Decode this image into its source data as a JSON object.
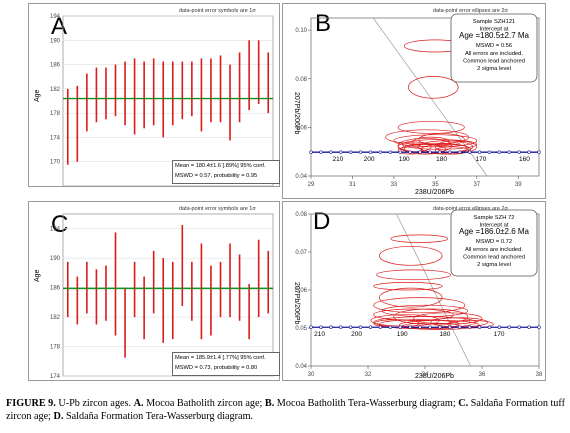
{
  "panels": {
    "A": {
      "letter": "A",
      "top_note": "data-point error symbols are 1σ",
      "ylabel": "Age",
      "ylim": [
        166,
        194
      ],
      "yticks": [
        "170",
        "174",
        "178",
        "182",
        "186",
        "190",
        "194"
      ],
      "mean_line": 180.4,
      "stats_line1": "Mean = 180.4±1.6  [.89%]  95% conf.",
      "stats_line2": "MSWD = 0.57, probability = 0.95",
      "colors": {
        "bar": "#dd1a1a",
        "mean": "#1a8a1a"
      }
    },
    "B": {
      "letter": "B",
      "top_note": "data-point error ellipses are 2σ",
      "xlabel": "238U/206Pb",
      "ylabel": "207Pb/206Pb",
      "xlim": [
        29,
        40
      ],
      "ylim": [
        0.04,
        0.105
      ],
      "xticks": [
        "29",
        "31",
        "33",
        "35",
        "37",
        "39"
      ],
      "yticks": [
        "0.04",
        "0.06",
        "0.08",
        "0.10"
      ],
      "concordia_labels": [
        "210",
        "200",
        "190",
        "180",
        "170",
        "160"
      ],
      "info": [
        "Sample SZH121",
        "Intercept at",
        "Age =180.5±2.7 Ma",
        "MSWD = 0.56",
        "All errors are included.",
        "Common lead anchored",
        "2 sigma level"
      ]
    },
    "C": {
      "letter": "C",
      "top_note": "data-point error symbols are 1σ",
      "ylabel": "Age",
      "ylim": [
        174,
        196
      ],
      "yticks": [
        "174",
        "178",
        "182",
        "186",
        "190",
        "194"
      ],
      "mean_line": 185.9,
      "stats_line1": "Mean = 185.9±1.4  [.77%]  95% conf.",
      "stats_line2": "MSWD = 0.73, probability = 0.80"
    },
    "D": {
      "letter": "D",
      "top_note": "data-point error ellipses are 2σ",
      "xlabel": "238U/206Pb",
      "ylabel": "207Pb/206Pb",
      "xlim": [
        30,
        38
      ],
      "ylim": [
        0.04,
        0.08
      ],
      "xticks": [
        "30",
        "32",
        "34",
        "36",
        "38"
      ],
      "yticks": [
        "0.04",
        "0.05",
        "0.06",
        "0.07",
        "0.08"
      ],
      "concordia_labels": [
        "210",
        "200",
        "190",
        "180",
        "170"
      ],
      "info": [
        "Sample SZH 72",
        "Intercept at",
        "Age =186.0±2.6 Ma",
        "MSWD = 0.72",
        "All errors are included.",
        "Common lead anchored",
        "2 sigma level"
      ]
    }
  },
  "chart_data": [
    {
      "type": "bar",
      "id": "A",
      "ylim": [
        166,
        194
      ],
      "mean": 180.4,
      "intervals": [
        [
          169.5,
          182.0
        ],
        [
          170.0,
          182.5
        ],
        [
          175.0,
          184.5
        ],
        [
          176.5,
          185.5
        ],
        [
          177.0,
          185.5
        ],
        [
          177.5,
          186.0
        ],
        [
          176.0,
          186.5
        ],
        [
          174.5,
          187.0
        ],
        [
          175.5,
          186.5
        ],
        [
          176.0,
          187.0
        ],
        [
          174.0,
          186.5
        ],
        [
          176.0,
          186.5
        ],
        [
          177.0,
          186.5
        ],
        [
          177.5,
          186.5
        ],
        [
          175.0,
          187.0
        ],
        [
          176.5,
          187.0
        ],
        [
          176.5,
          187.5
        ],
        [
          173.5,
          186.0
        ],
        [
          176.5,
          188.0
        ],
        [
          178.5,
          190.0
        ],
        [
          179.5,
          190.0
        ],
        [
          178.0,
          188.0
        ]
      ]
    },
    {
      "type": "scatter",
      "id": "B",
      "xlim": [
        29,
        40
      ],
      "ylim": [
        0.04,
        0.105
      ],
      "concordia": {
        "y": 0.0498,
        "ages": [
          210,
          200,
          190,
          180,
          170,
          160
        ],
        "x": [
          30.3,
          31.8,
          33.5,
          35.3,
          37.2,
          39.3
        ]
      },
      "ellipses": [
        [
          35.0,
          0.0935,
          1.5,
          0.0025
        ],
        [
          34.9,
          0.0765,
          1.2,
          0.0045
        ],
        [
          34.8,
          0.06,
          1.6,
          0.0025
        ],
        [
          34.6,
          0.056,
          2.0,
          0.003
        ],
        [
          35.0,
          0.0545,
          2.0,
          0.0025
        ],
        [
          35.2,
          0.053,
          1.8,
          0.002
        ],
        [
          34.5,
          0.0525,
          1.3,
          0.003
        ],
        [
          35.5,
          0.052,
          1.3,
          0.0025
        ],
        [
          34.0,
          0.052,
          0.8,
          0.002
        ],
        [
          36.0,
          0.052,
          1.0,
          0.0025
        ],
        [
          35.0,
          0.0515,
          1.6,
          0.002
        ],
        [
          34.5,
          0.051,
          1.0,
          0.002
        ],
        [
          35.5,
          0.051,
          1.2,
          0.002
        ],
        [
          33.8,
          0.0505,
          0.6,
          0.0015
        ],
        [
          35.8,
          0.0505,
          0.8,
          0.0015
        ],
        [
          34.8,
          0.054,
          0.9,
          0.002
        ],
        [
          35.3,
          0.055,
          1.1,
          0.0025
        ]
      ],
      "regression": {
        "x1": 32.0,
        "y1": 0.105,
        "x2": 37.5,
        "y2": 0.04
      }
    },
    {
      "type": "bar",
      "id": "C",
      "ylim": [
        174,
        196
      ],
      "mean": 185.9,
      "intervals": [
        [
          182.0,
          189.5
        ],
        [
          181.0,
          187.5
        ],
        [
          182.5,
          189.5
        ],
        [
          181.0,
          188.5
        ],
        [
          181.5,
          189.0
        ],
        [
          179.5,
          193.5
        ],
        [
          176.5,
          186.0
        ],
        [
          182.0,
          189.5
        ],
        [
          179.0,
          187.5
        ],
        [
          182.5,
          191.0
        ],
        [
          178.5,
          190.0
        ],
        [
          179.0,
          189.5
        ],
        [
          183.5,
          194.5
        ],
        [
          181.5,
          189.5
        ],
        [
          179.0,
          192.0
        ],
        [
          179.5,
          189.0
        ],
        [
          182.0,
          189.5
        ],
        [
          182.0,
          192.0
        ],
        [
          181.5,
          190.5
        ],
        [
          179.0,
          186.5
        ],
        [
          182.0,
          192.5
        ],
        [
          182.5,
          191.0
        ]
      ]
    },
    {
      "type": "scatter",
      "id": "D",
      "xlim": [
        30,
        38
      ],
      "ylim": [
        0.04,
        0.08
      ],
      "concordia": {
        "y": 0.0502,
        "ages": [
          210,
          200,
          190,
          180,
          170
        ],
        "x": [
          30.3,
          31.6,
          33.2,
          34.7,
          36.6
        ]
      },
      "ellipses": [
        [
          33.8,
          0.0735,
          1.0,
          0.001
        ],
        [
          33.5,
          0.069,
          1.1,
          0.0025
        ],
        [
          33.6,
          0.064,
          1.3,
          0.0013
        ],
        [
          33.4,
          0.061,
          1.2,
          0.001
        ],
        [
          33.5,
          0.058,
          1.1,
          0.0025
        ],
        [
          33.8,
          0.056,
          1.6,
          0.002
        ],
        [
          34.0,
          0.0545,
          1.5,
          0.0015
        ],
        [
          33.6,
          0.0535,
          1.4,
          0.0015
        ],
        [
          34.2,
          0.053,
          1.3,
          0.002
        ],
        [
          34.8,
          0.0525,
          1.2,
          0.0015
        ],
        [
          33.3,
          0.052,
          1.2,
          0.0015
        ],
        [
          34.0,
          0.0515,
          1.8,
          0.0015
        ],
        [
          35.2,
          0.0515,
          1.0,
          0.0012
        ],
        [
          33.8,
          0.051,
          1.4,
          0.0012
        ],
        [
          34.5,
          0.0508,
          1.4,
          0.0012
        ],
        [
          33.0,
          0.0512,
          0.8,
          0.001
        ],
        [
          35.6,
          0.051,
          0.8,
          0.001
        ],
        [
          34.2,
          0.0505,
          1.0,
          0.0008
        ]
      ],
      "regression": {
        "x1": 33.0,
        "y1": 0.08,
        "x2": 35.6,
        "y2": 0.04
      }
    }
  ],
  "caption": {
    "fig": "FIGURE 9.",
    "intro": " U-Pb zircon ages. ",
    "a_lbl": "A.",
    "a_txt": " Mocoa Batholith zircon age; ",
    "b_lbl": "B.",
    "b_txt": " Mocoa Batholith Tera-Wasserburg diagram; ",
    "c_lbl": "C.",
    "c_txt": " Saldaña Formation tuff zircon age; ",
    "d_lbl": "D.",
    "d_txt": " Saldaña Formation Tera-Wasserburg diagram."
  }
}
